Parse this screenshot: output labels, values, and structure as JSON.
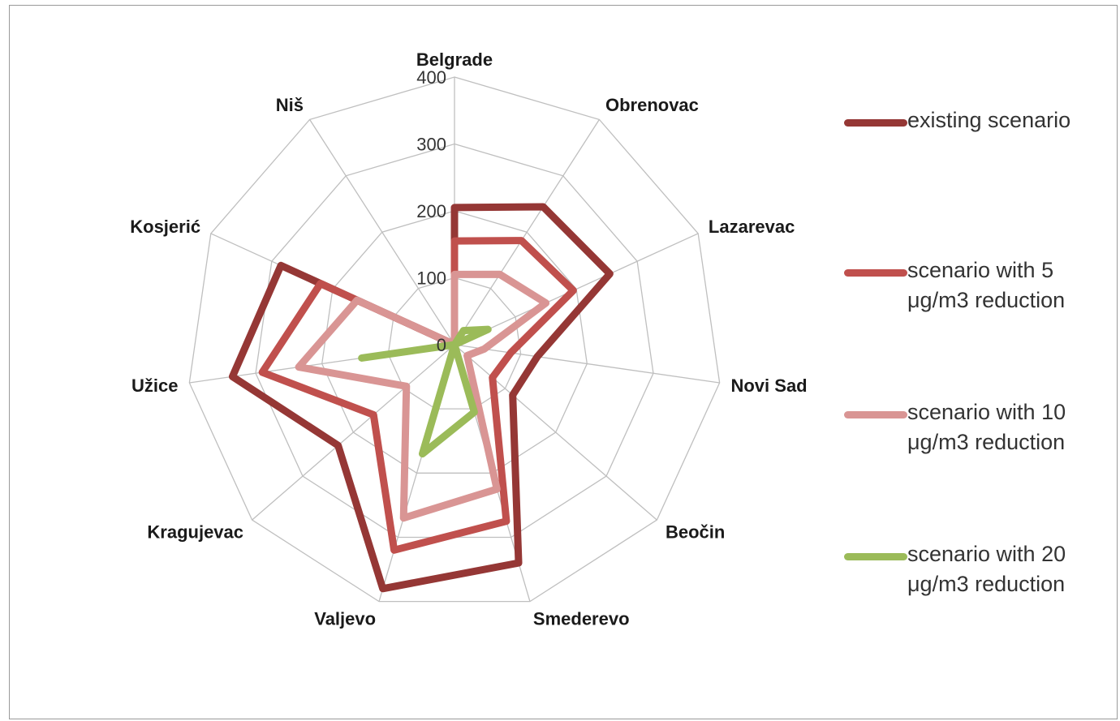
{
  "chart_data": {
    "type": "radar",
    "categories": [
      "Belgrade",
      "Obrenovac",
      "Lazarevac",
      "Novi Sad",
      "Beočin",
      "Smederevo",
      "Valjevo",
      "Kragujevac",
      "Užice",
      "Kosjerić",
      "Niš"
    ],
    "rlim": [
      0,
      400
    ],
    "ticks": [
      "0",
      "100",
      "200",
      "300",
      "400"
    ],
    "tick_values": [
      0,
      100,
      200,
      300,
      400
    ],
    "grid": true,
    "legend_position": "right",
    "series": [
      {
        "name": "existing scenario",
        "color": "#953735",
        "values": [
          205,
          245,
          255,
          125,
          115,
          340,
          380,
          230,
          335,
          285,
          0
        ]
      },
      {
        "name": "scenario with 5 μg/m3 reduction",
        "color": "#c0504d",
        "values": [
          155,
          185,
          195,
          85,
          75,
          275,
          320,
          160,
          290,
          220,
          0
        ]
      },
      {
        "name": "scenario with 10 μg/m3 reduction",
        "color": "#d99594",
        "values": [
          105,
          125,
          150,
          45,
          25,
          225,
          270,
          95,
          235,
          160,
          0
        ]
      },
      {
        "name": "scenario with 20 μg/m3 reduction",
        "color": "#9bbb59",
        "values": [
          0,
          25,
          55,
          0,
          0,
          105,
          170,
          0,
          140,
          0,
          0
        ]
      }
    ]
  }
}
